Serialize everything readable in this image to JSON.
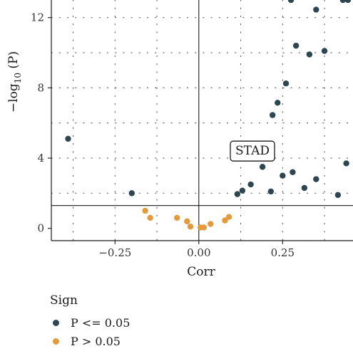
{
  "chart_data": {
    "type": "scatter",
    "title": "",
    "xlabel": "Corr",
    "ylabel_main": "−log",
    "ylabel_sub": "10",
    "ylabel_tail": " (P)",
    "xlim": [
      -0.44,
      0.46
    ],
    "ylim": [
      -0.7,
      13.0
    ],
    "x_ticks": [
      -0.25,
      0.0,
      0.25
    ],
    "x_tick_labels": [
      "−0.25",
      "0.00",
      "0.25"
    ],
    "y_ticks": [
      0,
      4,
      8,
      12
    ],
    "y_tick_labels": [
      "0",
      "4",
      "8",
      "12"
    ],
    "grid": true,
    "reference_lines": {
      "vertical_x": 0.0,
      "horizontal_y": 1.3
    },
    "annotation": {
      "text": "STAD",
      "x": 0.16,
      "y": 4.4
    },
    "colors": {
      "sig": "#2d4650",
      "nonsig": "#e39a3c"
    },
    "legend": {
      "title": "Sign",
      "position": "bottom-left",
      "items": [
        {
          "label": "P <= 0.05",
          "color": "#2d4650"
        },
        {
          "label": "P > 0.05",
          "color": "#e39a3c"
        }
      ]
    },
    "series": [
      {
        "name": "P <= 0.05",
        "color": "#2d4650",
        "points": [
          [
            -0.39,
            5.1
          ],
          [
            -0.2,
            2.0
          ],
          [
            0.115,
            1.95
          ],
          [
            0.13,
            2.15
          ],
          [
            0.155,
            2.5
          ],
          [
            0.19,
            3.5
          ],
          [
            0.215,
            2.1
          ],
          [
            0.22,
            6.45
          ],
          [
            0.235,
            7.15
          ],
          [
            0.25,
            3.0
          ],
          [
            0.26,
            8.25
          ],
          [
            0.275,
            13.0
          ],
          [
            0.28,
            3.2
          ],
          [
            0.29,
            10.4
          ],
          [
            0.315,
            2.3
          ],
          [
            0.33,
            9.9
          ],
          [
            0.35,
            12.45
          ],
          [
            0.35,
            2.8
          ],
          [
            0.375,
            10.1
          ],
          [
            0.415,
            1.9
          ],
          [
            0.43,
            13.0
          ],
          [
            0.445,
            13.0
          ],
          [
            0.44,
            3.7
          ]
        ]
      },
      {
        "name": "P > 0.05",
        "color": "#e39a3c",
        "points": [
          [
            -0.16,
            1.0
          ],
          [
            -0.145,
            0.6
          ],
          [
            -0.065,
            0.6
          ],
          [
            -0.035,
            0.4
          ],
          [
            -0.025,
            0.1
          ],
          [
            0.005,
            0.05
          ],
          [
            0.015,
            0.05
          ],
          [
            0.035,
            0.25
          ],
          [
            0.078,
            0.45
          ],
          [
            0.09,
            0.65
          ]
        ]
      }
    ]
  }
}
